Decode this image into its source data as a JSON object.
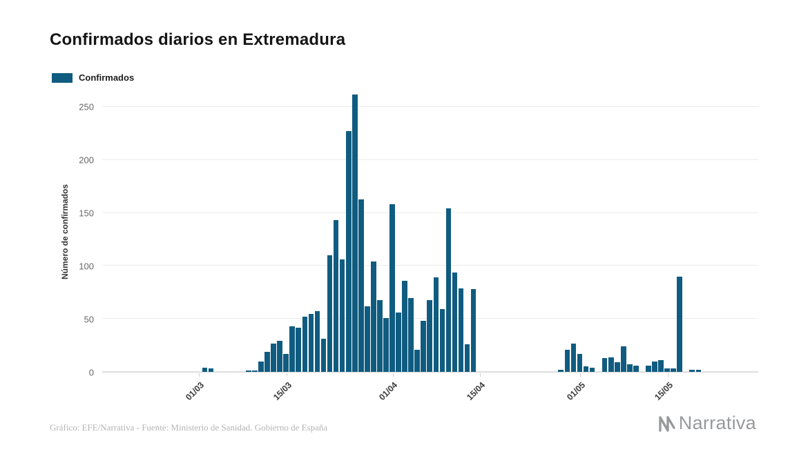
{
  "header": {
    "title": "Confirmados diarios en Extremadura"
  },
  "legend": {
    "label": "Confirmados",
    "color": "#105c80"
  },
  "footer": {
    "credit": "Gráfico: EFE/Narrativa - Fuente: Ministerio de Sanidad. Gobierno de España",
    "brand": "Narrativa",
    "brand_color": "#97999c",
    "brand_logo_icon": "narrativa-n-icon"
  },
  "chart_data": {
    "type": "bar",
    "title": "Confirmados diarios en Extremadura",
    "xlabel": "",
    "ylabel": "Número de confirmados",
    "series_name": "Confirmados",
    "bar_color": "#105c80",
    "grid": true,
    "legend_position": "top-left",
    "ylim": [
      0,
      265
    ],
    "yticks": [
      0,
      50,
      100,
      150,
      200,
      250
    ],
    "xticks": [
      {
        "label": "01/03",
        "index": 15
      },
      {
        "label": "15/03",
        "index": 29
      },
      {
        "label": "01/04",
        "index": 46
      },
      {
        "label": "15/04",
        "index": 60
      },
      {
        "label": "01/05",
        "index": 76
      },
      {
        "label": "15/05",
        "index": 90
      }
    ],
    "x": [
      "15/02",
      "16/02",
      "17/02",
      "18/02",
      "19/02",
      "20/02",
      "21/02",
      "22/02",
      "23/02",
      "24/02",
      "25/02",
      "26/02",
      "27/02",
      "28/02",
      "29/02",
      "01/03",
      "02/03",
      "03/03",
      "04/03",
      "05/03",
      "06/03",
      "07/03",
      "08/03",
      "09/03",
      "10/03",
      "11/03",
      "12/03",
      "13/03",
      "14/03",
      "15/03",
      "16/03",
      "17/03",
      "18/03",
      "19/03",
      "20/03",
      "21/03",
      "22/03",
      "23/03",
      "24/03",
      "25/03",
      "26/03",
      "27/03",
      "28/03",
      "29/03",
      "30/03",
      "31/03",
      "01/04",
      "02/04",
      "03/04",
      "04/04",
      "05/04",
      "06/04",
      "07/04",
      "08/04",
      "09/04",
      "10/04",
      "11/04",
      "12/04",
      "13/04",
      "14/04",
      "15/04",
      "16/04",
      "17/04",
      "18/04",
      "19/04",
      "20/04",
      "21/04",
      "22/04",
      "23/04",
      "24/04",
      "25/04",
      "26/04",
      "27/04",
      "28/04",
      "29/04",
      "30/04",
      "01/05",
      "02/05",
      "03/05",
      "04/05",
      "05/05",
      "06/05",
      "07/05",
      "08/05",
      "09/05",
      "10/05",
      "11/05",
      "12/05",
      "13/05",
      "14/05",
      "15/05",
      "16/05",
      "17/05",
      "18/05",
      "19/05",
      "20/05",
      "21/05",
      "22/05",
      "23/05",
      "24/05",
      "25/05",
      "26/05",
      "27/05",
      "28/05",
      "29/05"
    ],
    "values": [
      0,
      0,
      0,
      0,
      0,
      0,
      0,
      0,
      0,
      0,
      0,
      0,
      0,
      0,
      0,
      0,
      4,
      3,
      0,
      0,
      0,
      0,
      0,
      1,
      1,
      10,
      19,
      27,
      29,
      17,
      43,
      42,
      52,
      55,
      57,
      31,
      110,
      143,
      106,
      227,
      262,
      163,
      62,
      104,
      68,
      51,
      158,
      56,
      86,
      70,
      21,
      48,
      68,
      89,
      59,
      154,
      94,
      79,
      26,
      78,
      0,
      0,
      0,
      0,
      0,
      0,
      0,
      0,
      0,
      0,
      0,
      0,
      0,
      2,
      21,
      27,
      17,
      5,
      4,
      0,
      13,
      14,
      9,
      24,
      7,
      6,
      0,
      6,
      10,
      11,
      3,
      3,
      90,
      0,
      2,
      2,
      0,
      0,
      0,
      0,
      0,
      0,
      0,
      0,
      0
    ]
  }
}
